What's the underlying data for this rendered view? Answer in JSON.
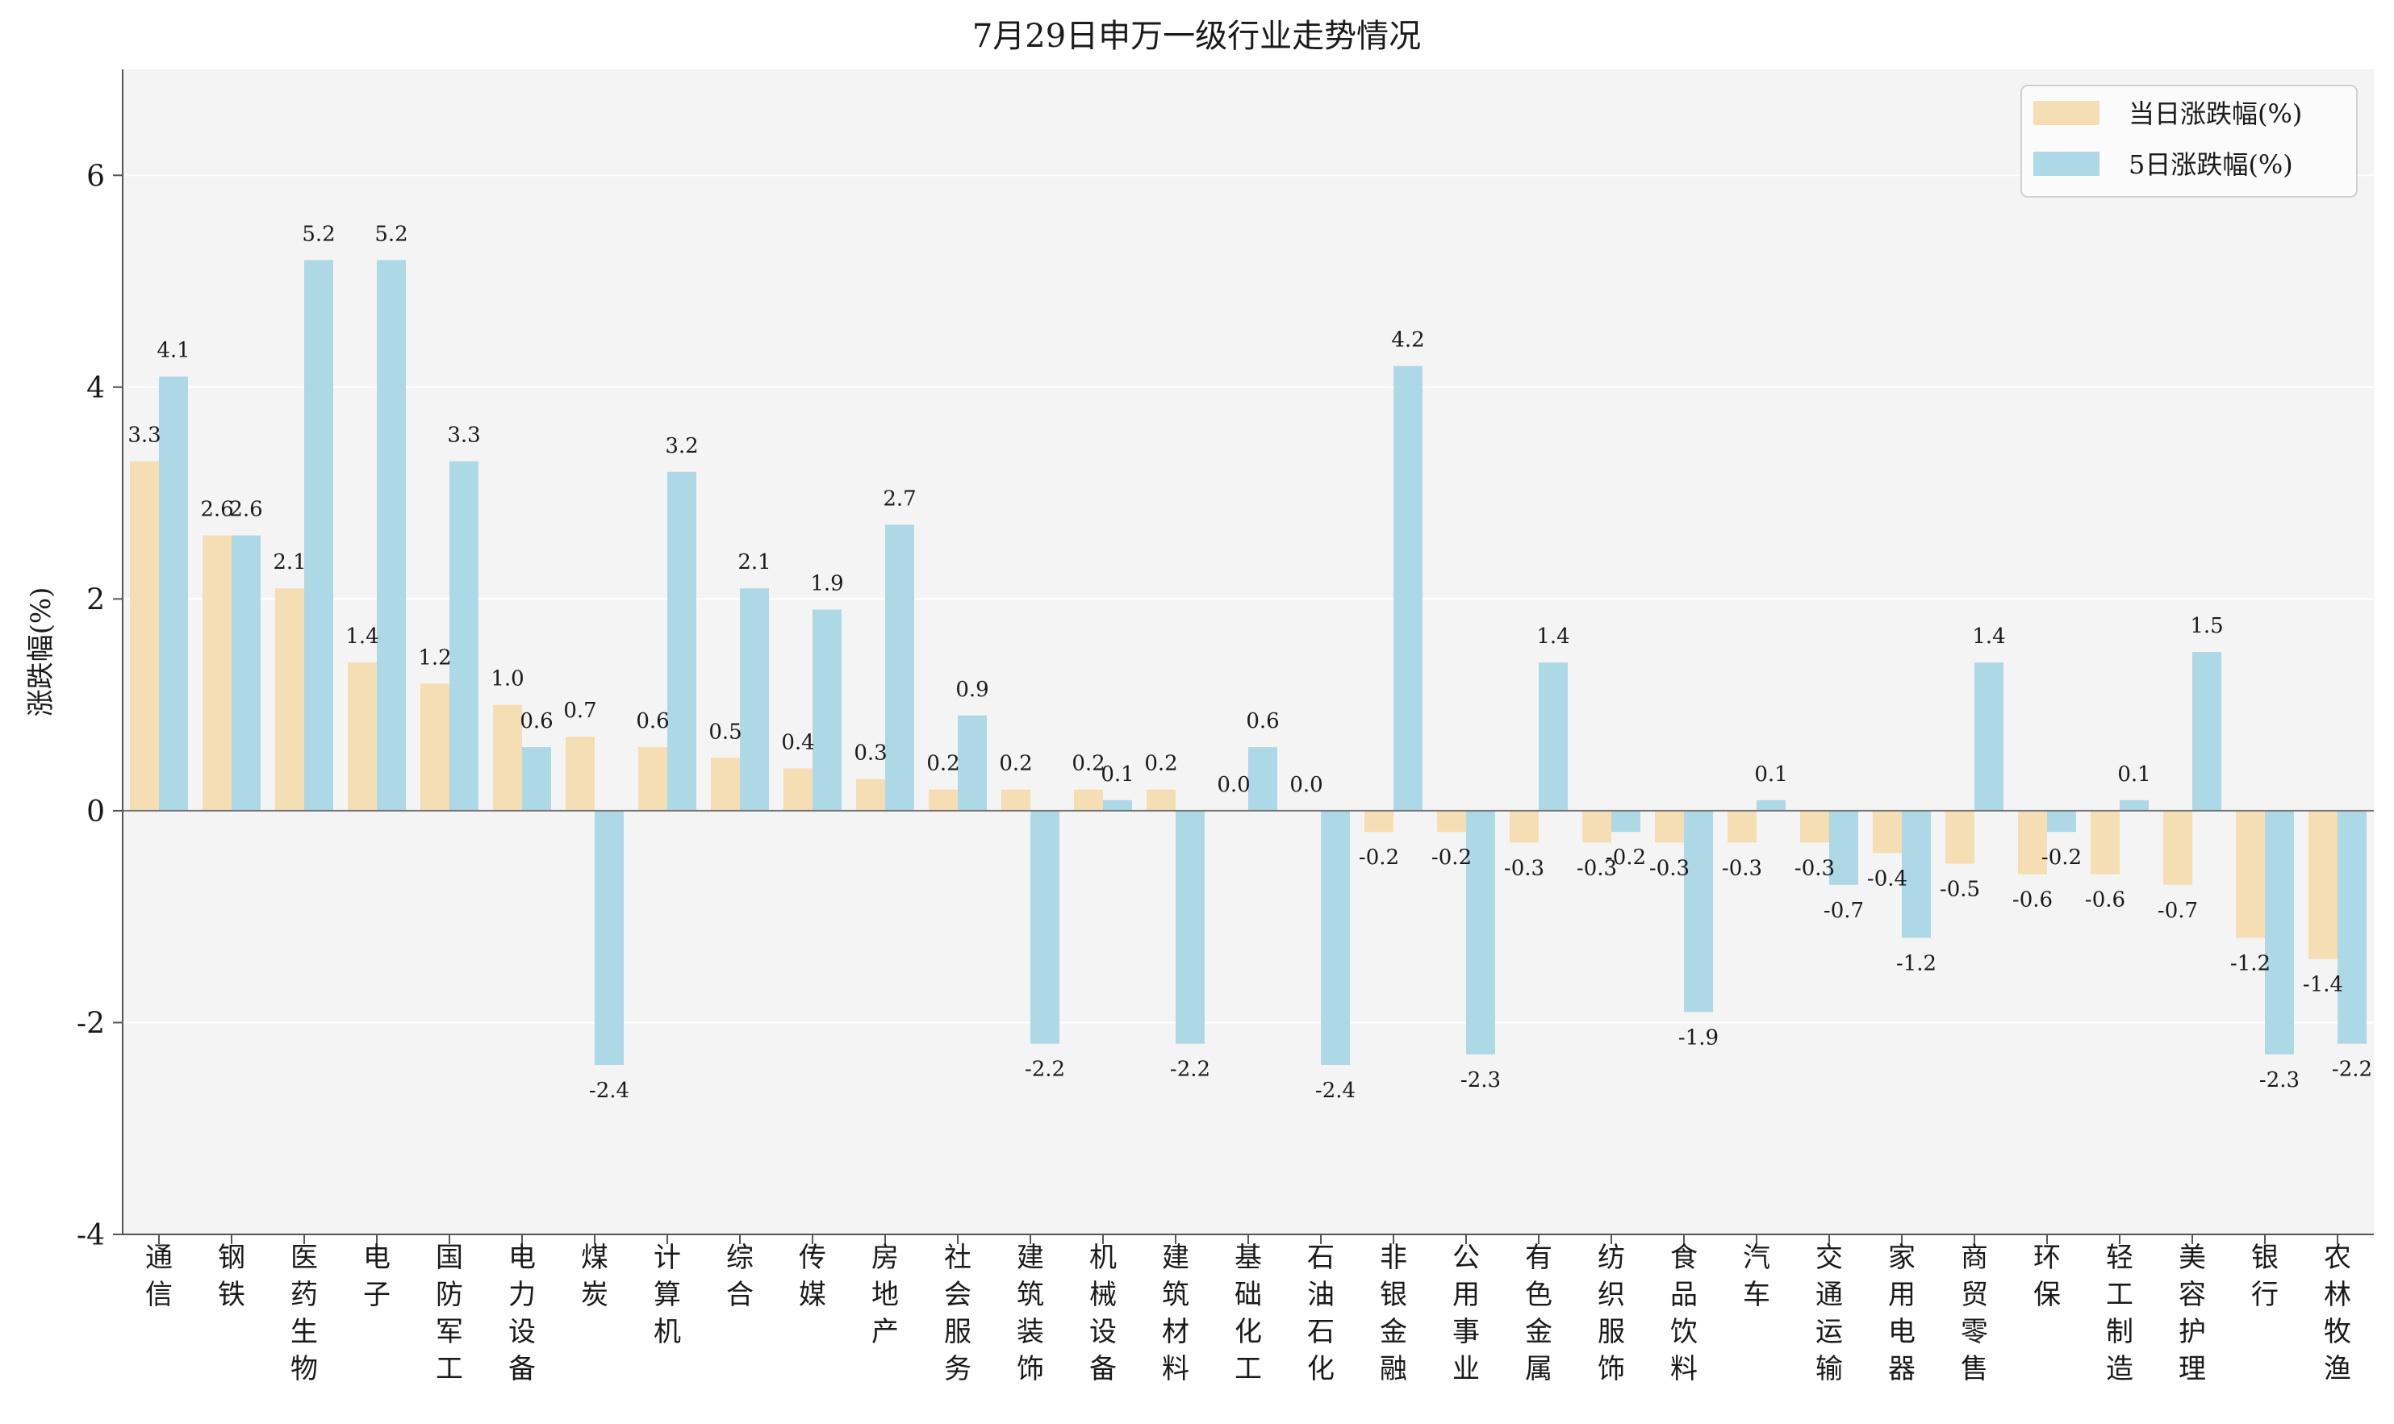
{
  "chart_data": {
    "type": "bar",
    "title": "7月29日申万一级行业走势情况",
    "xlabel": "",
    "ylabel": "涨跌幅(%)",
    "ylim": [
      -4,
      7
    ],
    "yticks": [
      -4,
      -2,
      0,
      2,
      4,
      6
    ],
    "ytick_labels": [
      "-4",
      "-2",
      "0",
      "2",
      "4",
      "6"
    ],
    "grid": true,
    "legend_position": "top-right",
    "categories": [
      "通信",
      "钢铁",
      "医药生物",
      "电子",
      "国防军工",
      "电力设备",
      "煤炭",
      "计算机",
      "综合",
      "传媒",
      "房地产",
      "社会服务",
      "建筑装饰",
      "机械设备",
      "建筑材料",
      "基础化工",
      "石油石化",
      "非银金融",
      "公用事业",
      "有色金属",
      "纺织服饰",
      "食品饮料",
      "汽车",
      "交通运输",
      "家用电器",
      "商贸零售",
      "环保",
      "轻工制造",
      "美容护理",
      "银行",
      "农林牧渔"
    ],
    "series": [
      {
        "name": "当日涨跌幅(%)",
        "color": "#f5deb3",
        "values": [
          3.3,
          2.6,
          2.1,
          1.4,
          1.2,
          1.0,
          0.7,
          0.6,
          0.5,
          0.4,
          0.3,
          0.2,
          0.2,
          0.2,
          0.2,
          0.0,
          0.0,
          -0.2,
          -0.2,
          -0.3,
          -0.3,
          -0.3,
          -0.3,
          -0.3,
          -0.4,
          -0.5,
          -0.6,
          -0.6,
          -0.7,
          -1.2,
          -1.4
        ],
        "labels": [
          "3.3",
          "2.6",
          "2.1",
          "1.4",
          "1.2",
          "1.0",
          "0.7",
          "0.6",
          "0.5",
          "0.4",
          "0.3",
          "0.2",
          "0.2",
          "0.2",
          "0.2",
          "0.0",
          "0.0",
          "-0.2",
          "-0.2",
          "-0.3",
          "-0.3",
          "-0.3",
          "-0.3",
          "-0.3",
          "-0.4",
          "-0.5",
          "-0.6",
          "-0.6",
          "-0.7",
          "-1.2",
          "-1.4"
        ]
      },
      {
        "name": "5日涨跌幅(%)",
        "color": "#add8e6",
        "values": [
          4.1,
          2.6,
          5.2,
          5.2,
          3.3,
          0.6,
          -2.4,
          3.2,
          2.1,
          1.9,
          2.7,
          0.9,
          -2.2,
          0.1,
          -2.2,
          0.6,
          -2.4,
          4.2,
          -2.3,
          1.4,
          -0.2,
          -1.9,
          0.1,
          -0.7,
          -1.2,
          1.4,
          -0.2,
          0.1,
          1.5,
          -2.3,
          -2.2
        ],
        "labels": [
          "4.1",
          "2.6",
          "5.2",
          "5.2",
          "3.3",
          "0.6",
          "-2.4",
          "3.2",
          "2.1",
          "1.9",
          "2.7",
          "0.9",
          "-2.2",
          "0.1",
          "-2.2",
          "0.6",
          "-2.4",
          "4.2",
          "-2.3",
          "1.4",
          "-0.2",
          "-1.9",
          "0.1",
          "-0.7",
          "-1.2",
          "1.4",
          "-0.2",
          "0.1",
          "1.5",
          "-2.3",
          "-2.2"
        ]
      }
    ]
  },
  "colors": {
    "plot_background": "#f4f4f4",
    "grid": "#ffffff",
    "axis": "#555555",
    "zero_line": "#777777"
  }
}
